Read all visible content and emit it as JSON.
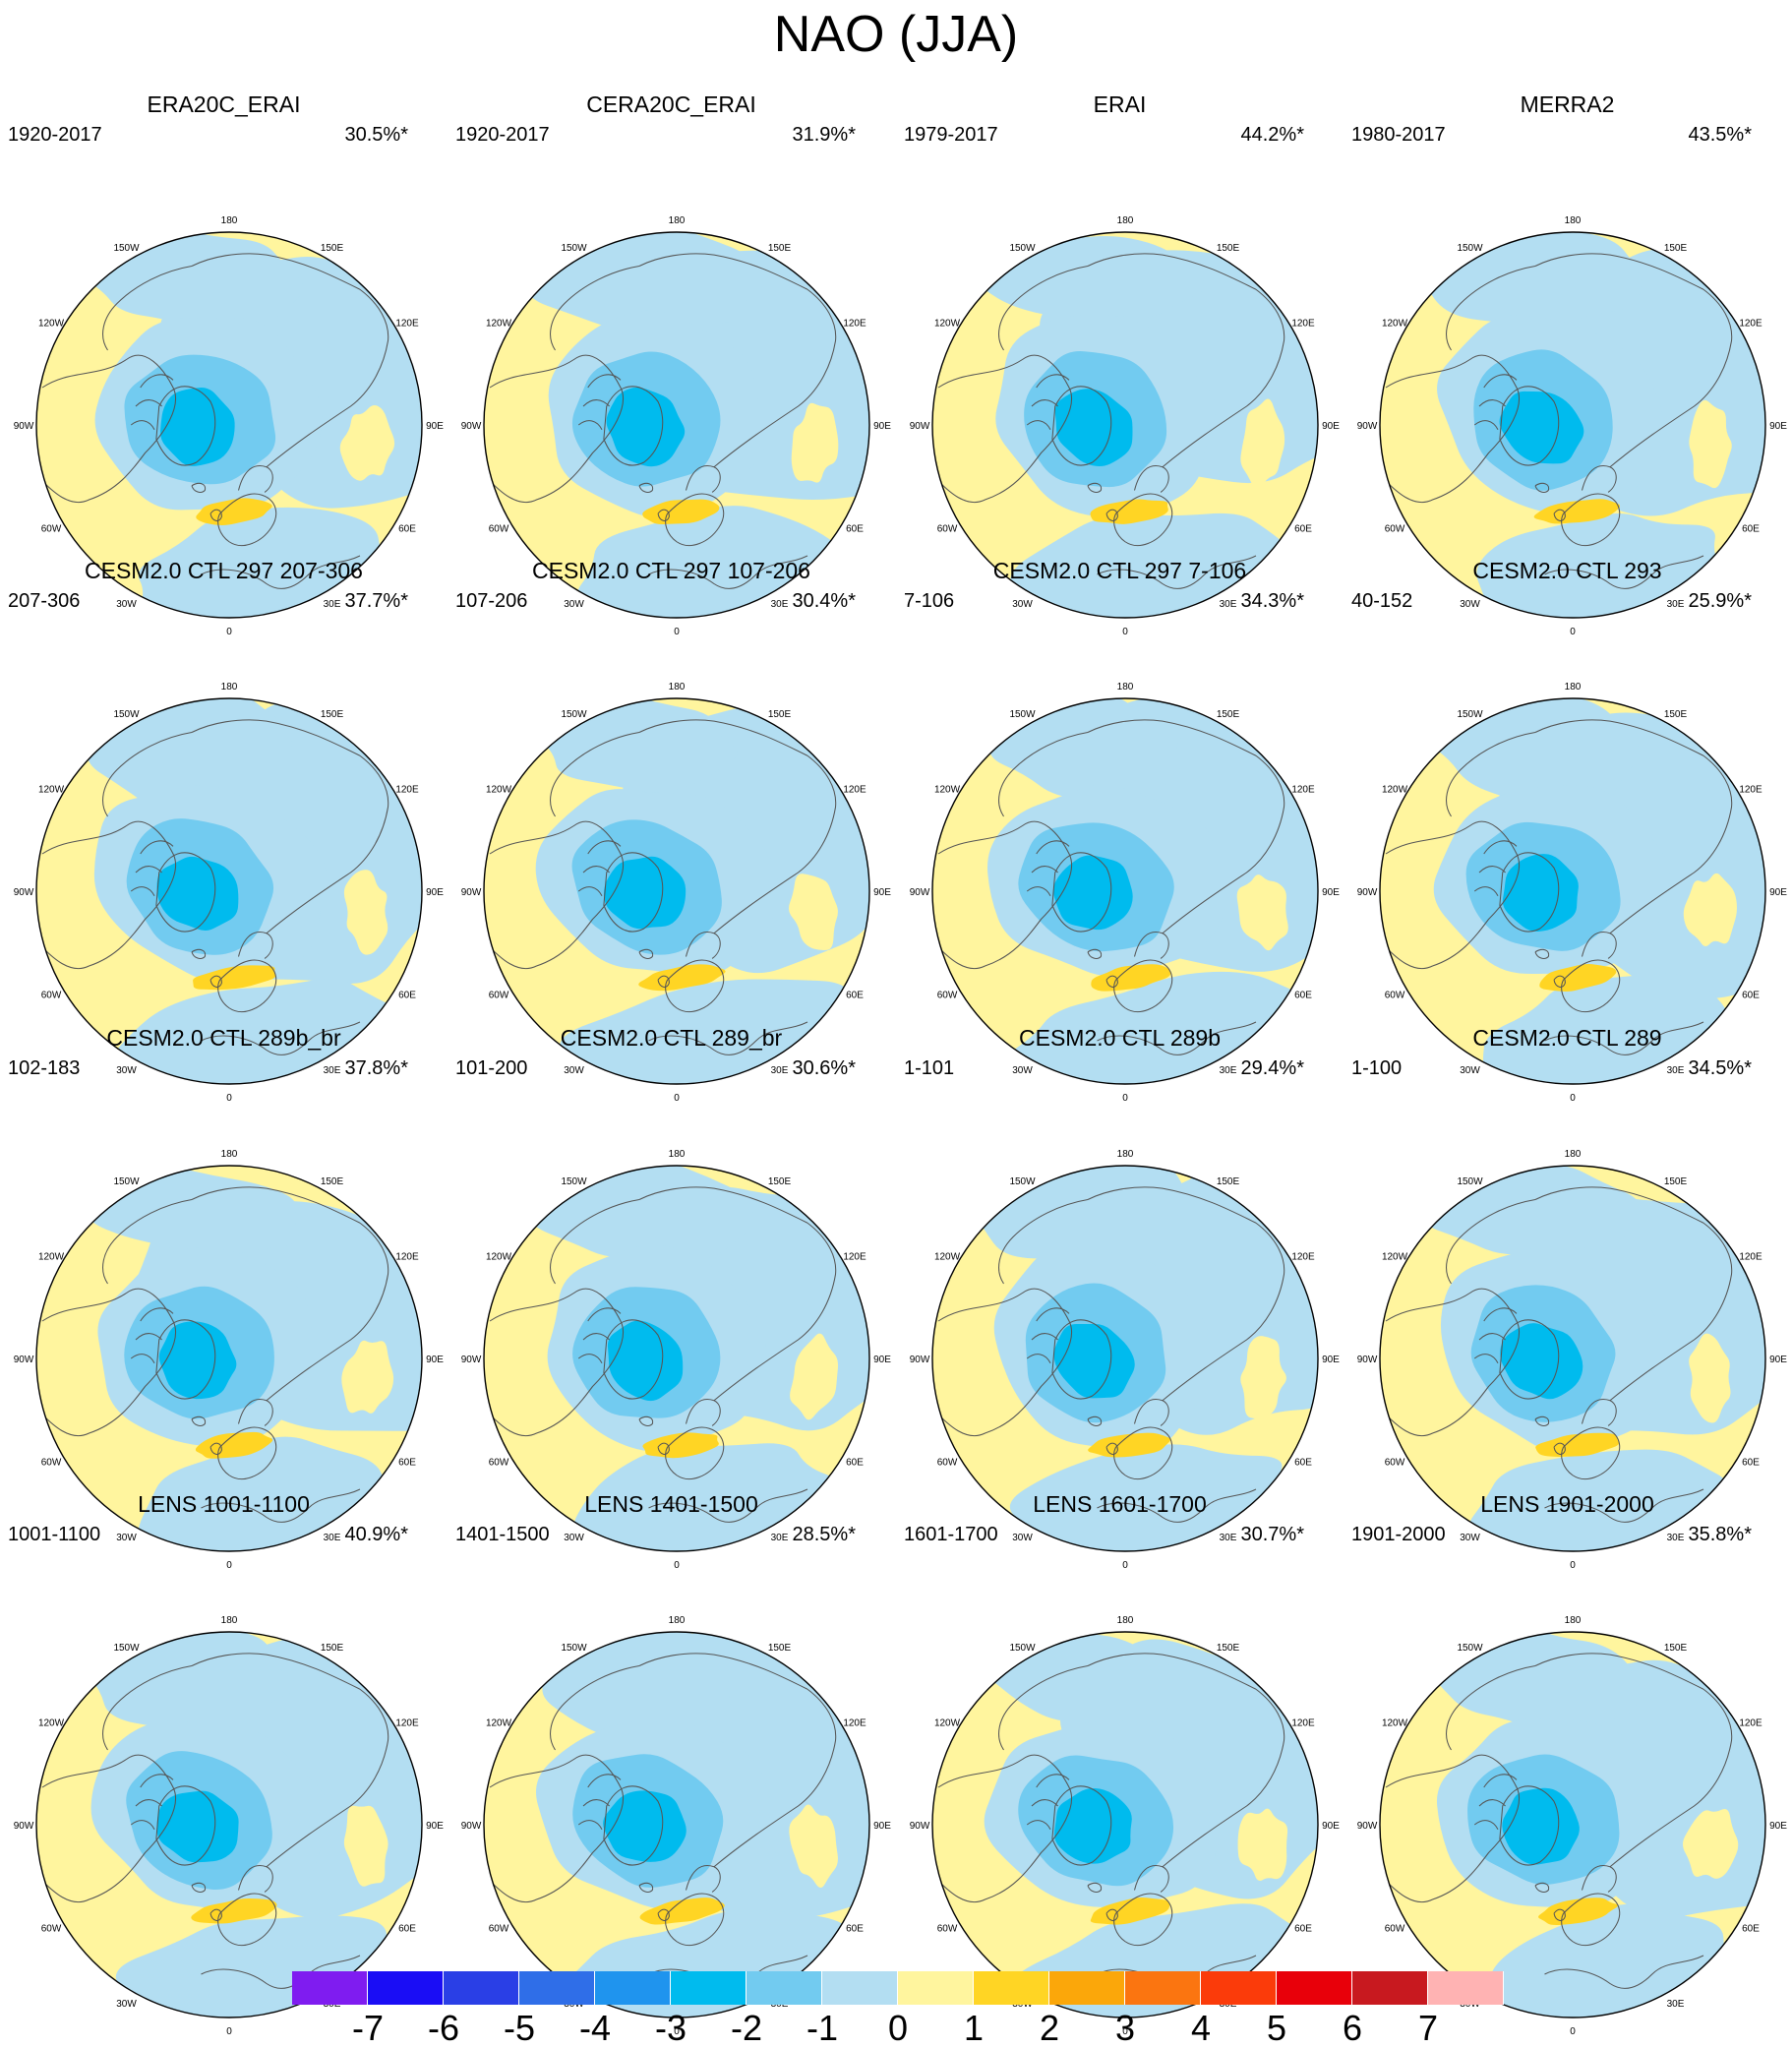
{
  "title": "NAO (JJA)",
  "lon_labels": [
    {
      "text": "180",
      "deg": 180
    },
    {
      "text": "150E",
      "deg": 150
    },
    {
      "text": "120E",
      "deg": 120
    },
    {
      "text": "90E",
      "deg": 90
    },
    {
      "text": "60E",
      "deg": 60
    },
    {
      "text": "30E",
      "deg": 30
    },
    {
      "text": "0",
      "deg": 0
    },
    {
      "text": "30W",
      "deg": -30
    },
    {
      "text": "60W",
      "deg": -60
    },
    {
      "text": "90W",
      "deg": -90
    },
    {
      "text": "120W",
      "deg": -120
    },
    {
      "text": "150W",
      "deg": -150
    }
  ],
  "panels": [
    {
      "title": "ERA20C_ERAI",
      "period": "1920-2017",
      "percent": "30.5%*"
    },
    {
      "title": "CERA20C_ERAI",
      "period": "1920-2017",
      "percent": "31.9%*"
    },
    {
      "title": "ERAI",
      "period": "1979-2017",
      "percent": "44.2%*"
    },
    {
      "title": "MERRA2",
      "period": "1980-2017",
      "percent": "43.5%*"
    },
    {
      "title": "CESM2.0 CTL 297 207-306",
      "period": "207-306",
      "percent": "37.7%*"
    },
    {
      "title": "CESM2.0 CTL 297 107-206",
      "period": "107-206",
      "percent": "30.4%*"
    },
    {
      "title": "CESM2.0 CTL 297 7-106",
      "period": "7-106",
      "percent": "34.3%*"
    },
    {
      "title": "CESM2.0 CTL 293",
      "period": "40-152",
      "percent": "25.9%*"
    },
    {
      "title": "CESM2.0 CTL 289b_br",
      "period": "102-183",
      "percent": "37.8%*"
    },
    {
      "title": "CESM2.0 CTL 289_br",
      "period": "101-200",
      "percent": "30.6%*"
    },
    {
      "title": "CESM2.0 CTL 289b",
      "period": "1-101",
      "percent": "29.4%*"
    },
    {
      "title": "CESM2.0 CTL 289",
      "period": "1-100",
      "percent": "34.5%*"
    },
    {
      "title": "LENS 1001-1100",
      "period": "1001-1100",
      "percent": "40.9%*"
    },
    {
      "title": "LENS 1401-1500",
      "period": "1401-1500",
      "percent": "28.5%*"
    },
    {
      "title": "LENS 1601-1700",
      "period": "1601-1700",
      "percent": "30.7%*"
    },
    {
      "title": "LENS 1901-2000",
      "period": "1901-2000",
      "percent": "35.8%*"
    }
  ],
  "colorbar": {
    "labels": [
      "-7",
      "-6",
      "-5",
      "-4",
      "-3",
      "-2",
      "-1",
      "0",
      "1",
      "2",
      "3",
      "4",
      "5",
      "6",
      "7"
    ],
    "colors": [
      "#7f1cf0",
      "#1a0df5",
      "#2a3fe6",
      "#2f6ee8",
      "#1f94ee",
      "#00bbee",
      "#72cbf0",
      "#b3def2",
      "#fff59e",
      "#ffd524",
      "#fba70a",
      "#fb7510",
      "#fb3b0a",
      "#e8000a",
      "#c8191f",
      "#ffb3b3"
    ]
  },
  "colors": {
    "neg1": "#b3def2",
    "neg2": "#72cbf0",
    "neg3": "#00bbee",
    "pos1": "#fff59e",
    "pos2": "#ffd524",
    "coastline": "#555555"
  }
}
